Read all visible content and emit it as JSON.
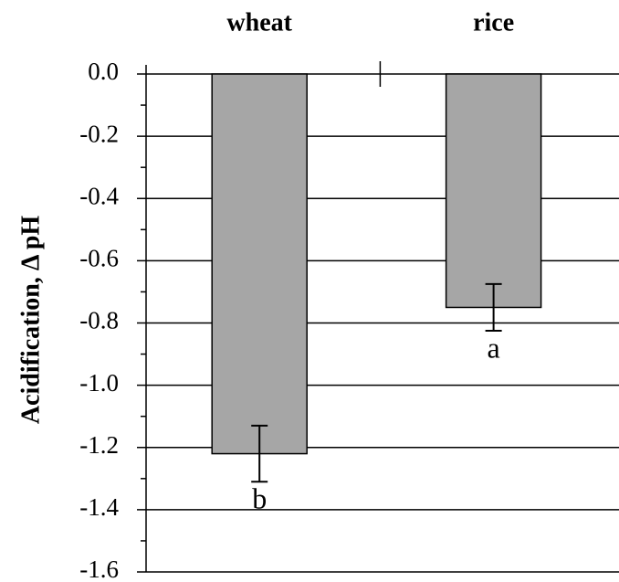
{
  "chart_data": {
    "type": "bar",
    "y_label": "Acidification, Δ pH",
    "categories": [
      "wheat",
      "rice"
    ],
    "values": [
      -1.22,
      -0.75
    ],
    "errors": [
      0.09,
      0.075
    ],
    "annotations": [
      "b",
      "a"
    ],
    "color": "#a6a6a6",
    "ylim": [
      -1.6,
      0
    ],
    "yticks": [
      {
        "value": 0,
        "label": "0.0"
      },
      {
        "value": -0.2,
        "label": "-0.2"
      },
      {
        "value": -0.4,
        "label": "-0.4"
      },
      {
        "value": -0.6,
        "label": "-0.6"
      },
      {
        "value": -0.8,
        "label": "-0.8"
      },
      {
        "value": -1.0,
        "label": "-1.0"
      },
      {
        "value": -1.2,
        "label": "-1.2"
      },
      {
        "value": -1.4,
        "label": "-1.4"
      },
      {
        "value": -1.6,
        "label": "-1.6"
      }
    ],
    "grid": true
  }
}
